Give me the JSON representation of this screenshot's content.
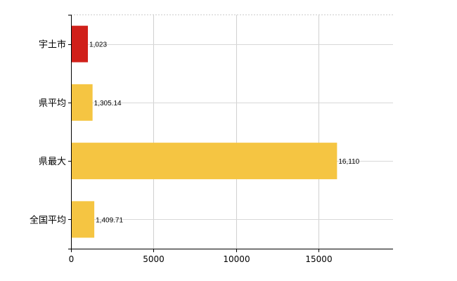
{
  "chart_data": {
    "type": "bar",
    "orientation": "horizontal",
    "categories": [
      "宇土市",
      "県平均",
      "県最大",
      "全国平均"
    ],
    "values": [
      1023,
      1305.14,
      16110,
      1409.71
    ],
    "value_labels": [
      "1,023",
      "1,305.14",
      "16,110",
      "1,409.71"
    ],
    "bar_colors": [
      "#d0201a",
      "#f5c542",
      "#f5c542",
      "#f5c542"
    ],
    "xlim": [
      0,
      19500
    ],
    "xticks": [
      0,
      5000,
      10000,
      15000
    ],
    "xtick_labels": [
      "0",
      "5000",
      "10000",
      "15000"
    ],
    "grid": true,
    "legend": "none",
    "title": "",
    "xlabel": "",
    "ylabel": ""
  }
}
